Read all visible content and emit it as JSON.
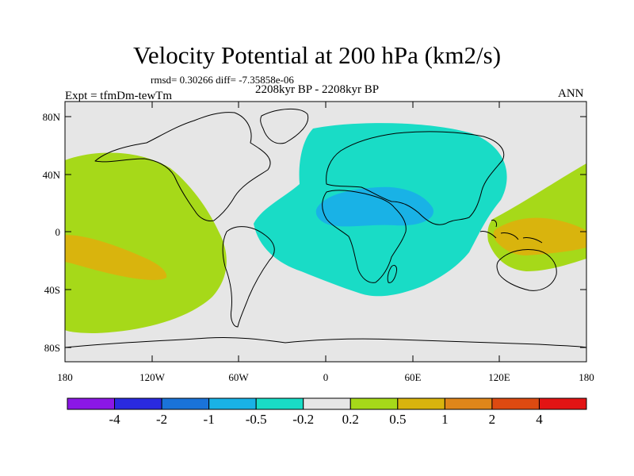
{
  "title": "Velocity Potential at 200 hPa (km2/s)",
  "rmsd_text": "rmsd= 0.30266  diff= -7.35858e-06",
  "period_text": "2208kyr BP - 2208kyr BP",
  "experiment_text": "Expt = tfmDm-tewTm",
  "season_text": "ANN",
  "axes": {
    "lat_labels": [
      "80N",
      "40N",
      "0",
      "40S",
      "80S"
    ],
    "lon_labels": [
      "180",
      "120W",
      "60W",
      "0",
      "60E",
      "120E",
      "180"
    ]
  },
  "colorbar": {
    "colors": [
      "#8b17e6",
      "#2a2ae0",
      "#1a73d9",
      "#19b2e6",
      "#19dcc6",
      "#e6e6e6",
      "#a6d919",
      "#d9b40d",
      "#e0861a",
      "#dd4a11",
      "#e31414"
    ],
    "labels": [
      "-4",
      "-2",
      "-1",
      "-0.5",
      "-0.2",
      "0.2",
      "0.5",
      "1",
      "2",
      "4"
    ]
  },
  "colors": {
    "background": "#e6e6e6",
    "negative_weak": "#19dcc6",
    "negative_mid": "#19b2e6",
    "positive_weak": "#a6d919",
    "positive_mid": "#d9b40d"
  }
}
